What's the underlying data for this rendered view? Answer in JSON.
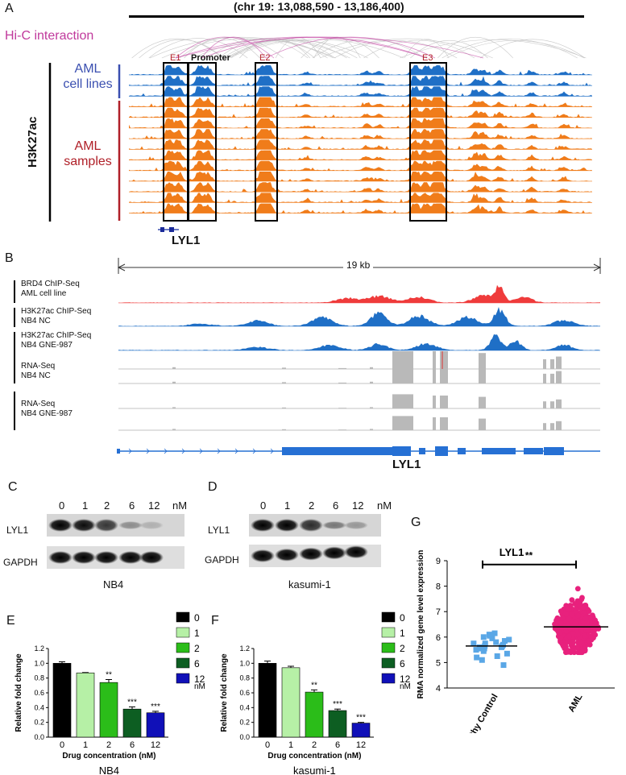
{
  "colors": {
    "hic": "#c0399c",
    "aml_lines": "#1f6fc6",
    "aml_samples": "#f07c1a",
    "brd4": "#ef3b3b",
    "rna": "#b9b9b9",
    "label_blue": "#3a4fb0",
    "label_red": "#b02028",
    "box_fill": "#dfe9f2",
    "enh_red": "#b32028"
  },
  "panel_a": {
    "letter": "A",
    "coords": "(chr 19: 13,088,590 - 13,186,400)",
    "hic_label": "Hi-C interaction",
    "h3k27ac_label": "H3K27ac",
    "aml_lines_label": [
      "AML",
      "cell lines"
    ],
    "aml_samples_label": [
      "AML",
      "samples"
    ],
    "boxes": [
      "E1",
      "Promoter",
      "E2",
      "E3"
    ],
    "gene": "LYL1"
  },
  "panel_b": {
    "letter": "B",
    "scale": "19 kb",
    "tracks": [
      {
        "l1": "BRD4 ChIP-Seq",
        "l2": "AML cell line"
      },
      {
        "l1": "H3K27ac ChIP-Seq",
        "l2": "NB4 NC"
      },
      {
        "l1": "H3K27ac ChIP-Seq",
        "l2": "NB4 GNE-987"
      },
      {
        "l1": "RNA-Seq",
        "l2": "NB4 NC"
      },
      {
        "l1": "RNA-Seq",
        "l2": "NB4 GNE-987"
      }
    ],
    "gene": "LYL1"
  },
  "panel_c": {
    "letter": "C",
    "conc": [
      "0",
      "1",
      "2",
      "6",
      "12"
    ],
    "unit": "nM",
    "rows": [
      "LYL1",
      "GAPDH"
    ],
    "cell": "NB4"
  },
  "panel_d": {
    "letter": "D",
    "conc": [
      "0",
      "1",
      "2",
      "6",
      "12"
    ],
    "unit": "nM",
    "rows": [
      "LYL1",
      "GAPDH"
    ],
    "cell": "kasumi-1"
  },
  "chart_data": [
    {
      "panel": "E",
      "type": "bar",
      "categories": [
        "0",
        "1",
        "2",
        "6",
        "12"
      ],
      "values": [
        1.0,
        0.87,
        0.74,
        0.38,
        0.33
      ],
      "errors": [
        0.02,
        0.005,
        0.04,
        0.03,
        0.02
      ],
      "significance": [
        "",
        "",
        "**",
        "***",
        "***"
      ],
      "bar_colors": [
        "#000000",
        "#b6f0a6",
        "#2bbd19",
        "#0d5e22",
        "#1010b8"
      ],
      "ylabel": "Relative fold change",
      "xlabel": "Drug concentration (nM)",
      "ylim": [
        0,
        1.2
      ],
      "yticks": [
        "0.0",
        "0.2",
        "0.4",
        "0.6",
        "0.8",
        "1.0",
        "1.2"
      ],
      "legend": [
        "0",
        "1",
        "2",
        "6",
        "12"
      ],
      "legend_unit": "nM",
      "caption": "NB4"
    },
    {
      "panel": "F",
      "type": "bar",
      "categories": [
        "0",
        "1",
        "2",
        "6",
        "12"
      ],
      "values": [
        1.0,
        0.94,
        0.61,
        0.36,
        0.19
      ],
      "errors": [
        0.03,
        0.02,
        0.03,
        0.02,
        0.01
      ],
      "significance": [
        "",
        "",
        "**",
        "***",
        "***"
      ],
      "bar_colors": [
        "#000000",
        "#b6f0a6",
        "#2bbd19",
        "#0d5e22",
        "#1010b8"
      ],
      "ylabel": "Relative fold change",
      "xlabel": "Drug concentration (nM)",
      "ylim": [
        0,
        1.2
      ],
      "yticks": [
        "0.0",
        "0.2",
        "0.4",
        "0.6",
        "0.8",
        "1.0",
        "1.2"
      ],
      "legend": [
        "0",
        "1",
        "2",
        "6",
        "12"
      ],
      "legend_unit": "nM",
      "caption": "kasumi-1"
    },
    {
      "panel": "G",
      "type": "scatter",
      "title": "LYL1",
      "categories": [
        "Healthy Control",
        "AML"
      ],
      "ylabel": "RMA normalized gene level expression",
      "ylim": [
        4,
        9
      ],
      "yticks": [
        "4",
        "5",
        "6",
        "7",
        "8",
        "9"
      ],
      "means": [
        5.65,
        6.4
      ],
      "healthy_values": [
        5.25,
        5.35,
        5.45,
        5.5,
        5.55,
        5.6,
        5.6,
        5.65,
        5.7,
        5.75,
        5.8,
        5.85,
        5.9,
        5.95,
        6.0,
        6.05,
        6.1,
        6.15,
        5.1,
        4.9,
        5.2,
        5.65,
        5.75,
        5.55
      ],
      "aml_range": [
        5.4,
        7.9
      ],
      "significance": "**",
      "colors": [
        "#5aa7e6",
        "#e8217d"
      ]
    }
  ]
}
